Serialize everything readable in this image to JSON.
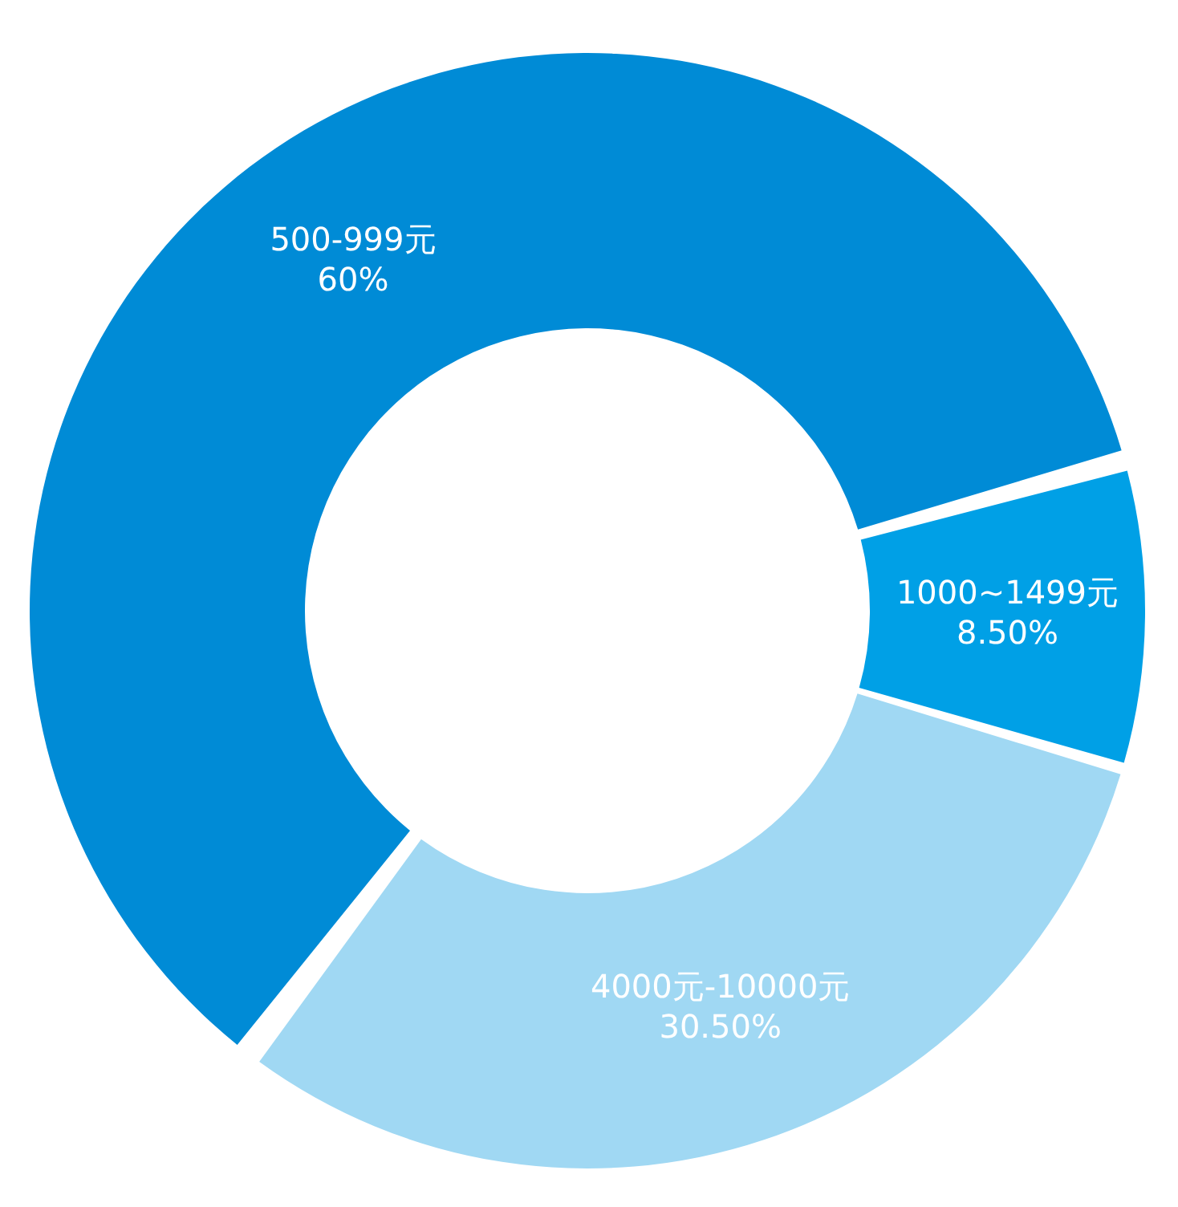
{
  "chart_data": {
    "type": "donut",
    "categories": [
      "500-999元",
      "1000~1499元",
      "4000元-10000元"
    ],
    "values": [
      60,
      8.5,
      30.5
    ],
    "colors": [
      "#008bd6",
      "#00a0e6",
      "#a0d8f3"
    ],
    "value_labels": [
      "60%",
      "8.50%",
      "30.50%"
    ],
    "legend": false
  }
}
